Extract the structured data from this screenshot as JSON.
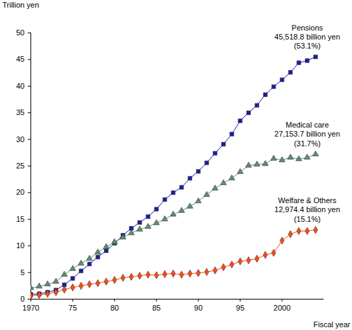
{
  "chart_data": {
    "type": "line",
    "y_label": "Trillion yen",
    "x_label": "Fiscal year",
    "x": [
      1970,
      1971,
      1972,
      1973,
      1974,
      1975,
      1976,
      1977,
      1978,
      1979,
      1980,
      1981,
      1982,
      1983,
      1984,
      1985,
      1986,
      1987,
      1988,
      1989,
      1990,
      1991,
      1992,
      1993,
      1994,
      1995,
      1996,
      1997,
      1998,
      1999,
      2000,
      2001,
      2002,
      2003,
      2004
    ],
    "xlim": [
      1970,
      2005
    ],
    "xticks": [
      1970,
      {
        "value": 1975,
        "label": "75"
      },
      {
        "value": 1980,
        "label": "80"
      },
      {
        "value": 1985,
        "label": "85"
      },
      {
        "value": 1990,
        "label": "90"
      },
      {
        "value": 1995,
        "label": "95"
      },
      2000
    ],
    "ylim": [
      0,
      50
    ],
    "yticks": [
      0,
      5,
      10,
      15,
      20,
      25,
      30,
      35,
      40,
      45,
      50
    ],
    "grid": false,
    "series": [
      {
        "name": "Pensions",
        "color": "#1c1ca8",
        "marker": "square",
        "line_style": "solid",
        "annotation": [
          "45,518.8 billion yen",
          "(53.1%)"
        ],
        "values": [
          0.9,
          1.0,
          1.3,
          1.7,
          2.7,
          3.9,
          5.3,
          6.6,
          7.9,
          9.1,
          10.5,
          12.0,
          13.3,
          14.4,
          15.5,
          16.9,
          18.7,
          20.0,
          21.0,
          22.7,
          24.0,
          25.6,
          27.4,
          29.1,
          31.0,
          33.5,
          35.0,
          36.4,
          38.4,
          39.9,
          41.2,
          42.6,
          44.4,
          44.8,
          45.5
        ]
      },
      {
        "name": "Medical care",
        "color": "#5e8f72",
        "marker": "triangle",
        "line_style": "solid",
        "annotation": [
          "27,153.7 billion yen",
          "(31.7%)"
        ],
        "values": [
          2.1,
          2.4,
          2.8,
          3.3,
          4.6,
          5.7,
          6.7,
          7.6,
          8.8,
          9.8,
          10.7,
          11.6,
          12.4,
          13.1,
          13.6,
          14.3,
          15.0,
          15.9,
          16.6,
          17.4,
          18.4,
          19.6,
          20.8,
          21.8,
          22.7,
          23.9,
          25.1,
          25.3,
          25.4,
          26.4,
          26.1,
          26.6,
          26.3,
          26.6,
          27.2
        ]
      },
      {
        "name": "Welfare & Others",
        "color": "#ff4a14",
        "marker": "diamond",
        "line_style": "solid",
        "annotation": [
          "12,974.4 billion yen",
          "(15.1%)"
        ],
        "values": [
          0.6,
          0.8,
          1.0,
          1.3,
          1.8,
          2.2,
          2.5,
          2.8,
          3.0,
          3.3,
          3.6,
          4.0,
          4.2,
          4.4,
          4.6,
          4.5,
          4.7,
          4.8,
          4.6,
          4.8,
          4.9,
          5.1,
          5.4,
          6.0,
          6.5,
          7.1,
          7.3,
          7.6,
          8.3,
          8.7,
          11.0,
          12.2,
          12.8,
          12.8,
          13.0
        ]
      }
    ]
  }
}
